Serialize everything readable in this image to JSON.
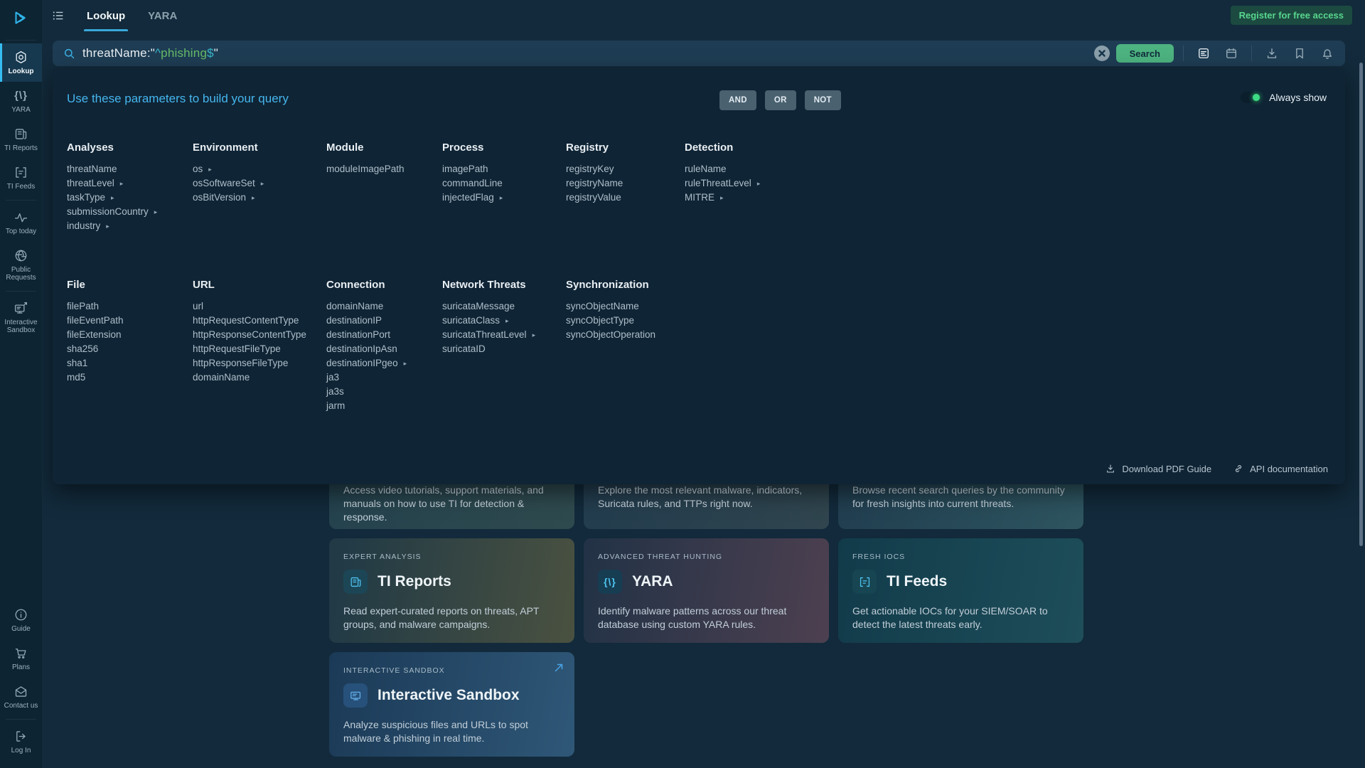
{
  "colors": {
    "accent_blue": "#39a9db",
    "button_green": "#4db380",
    "register_green": "#58d68d",
    "toggle_green": "#3ddc84",
    "query_value_green": "#66bb6a",
    "query_operator_teal": "#3ab5c9",
    "panel_bg": "#0f2435",
    "sidebar_bg": "#0d2433"
  },
  "sidebar": {
    "items": [
      {
        "label": "Lookup",
        "active": true
      },
      {
        "label": "YARA"
      },
      {
        "label": "TI Reports"
      },
      {
        "label": "TI Feeds"
      },
      {
        "label": "Top today"
      },
      {
        "label": "Public Requests"
      },
      {
        "label": "Interactive Sandbox"
      },
      {
        "label": "Guide"
      },
      {
        "label": "Plans"
      },
      {
        "label": "Contact us"
      },
      {
        "label": "Log In"
      }
    ]
  },
  "topbar": {
    "tabs": [
      {
        "label": "Lookup",
        "active": true
      },
      {
        "label": "YARA",
        "active": false
      }
    ],
    "register_label": "Register for free access"
  },
  "search": {
    "tokens": [
      "threatName:\"",
      "^",
      "phishing",
      "$",
      "\""
    ],
    "search_label": "Search"
  },
  "panel": {
    "title": "Use these parameters to build your query",
    "operators": [
      "AND",
      "OR",
      "NOT"
    ],
    "always_show_label": "Always show",
    "rows": [
      [
        {
          "title": "Analyses",
          "items": [
            {
              "label": "threatName"
            },
            {
              "label": "threatLevel",
              "arrow": true
            },
            {
              "label": "taskType",
              "arrow": true
            },
            {
              "label": "submissionCountry",
              "arrow": true
            },
            {
              "label": "industry",
              "arrow": true
            }
          ]
        },
        {
          "title": "Environment",
          "items": [
            {
              "label": "os",
              "arrow": true
            },
            {
              "label": "osSoftwareSet",
              "arrow": true
            },
            {
              "label": "osBitVersion",
              "arrow": true
            }
          ]
        },
        {
          "title": "Module",
          "items": [
            {
              "label": "moduleImagePath"
            }
          ]
        },
        {
          "title": "Process",
          "items": [
            {
              "label": "imagePath"
            },
            {
              "label": "commandLine"
            },
            {
              "label": "injectedFlag",
              "arrow": true
            }
          ]
        },
        {
          "title": "Registry",
          "items": [
            {
              "label": "registryKey"
            },
            {
              "label": "registryName"
            },
            {
              "label": "registryValue"
            }
          ]
        },
        {
          "title": "Detection",
          "items": [
            {
              "label": "ruleName"
            },
            {
              "label": "ruleThreatLevel",
              "arrow": true
            },
            {
              "label": "MITRE",
              "arrow": true
            }
          ]
        }
      ],
      [
        {
          "title": "File",
          "items": [
            {
              "label": "filePath"
            },
            {
              "label": "fileEventPath"
            },
            {
              "label": "fileExtension"
            },
            {
              "label": "sha256"
            },
            {
              "label": "sha1"
            },
            {
              "label": "md5"
            }
          ]
        },
        {
          "title": "URL",
          "items": [
            {
              "label": "url"
            },
            {
              "label": "httpRequestContentType"
            },
            {
              "label": "httpResponseContentType"
            },
            {
              "label": "httpRequestFileType"
            },
            {
              "label": "httpResponseFileType"
            },
            {
              "label": "domainName"
            }
          ]
        },
        {
          "title": "Connection",
          "items": [
            {
              "label": "domainName"
            },
            {
              "label": "destinationIP"
            },
            {
              "label": "destinationPort"
            },
            {
              "label": "destinationIpAsn"
            },
            {
              "label": "destinationIPgeo",
              "arrow": true
            },
            {
              "label": "ja3"
            },
            {
              "label": "ja3s"
            },
            {
              "label": "jarm"
            }
          ]
        },
        {
          "title": "Network Threats",
          "items": [
            {
              "label": "suricataMessage"
            },
            {
              "label": "suricataClass",
              "arrow": true
            },
            {
              "label": "suricataThreatLevel",
              "arrow": true
            },
            {
              "label": "suricataID"
            }
          ]
        },
        {
          "title": "Synchronization",
          "items": [
            {
              "label": "syncObjectName"
            },
            {
              "label": "syncObjectType"
            },
            {
              "label": "syncObjectOperation"
            }
          ]
        }
      ]
    ],
    "footer_links": [
      {
        "label": "Download PDF Guide"
      },
      {
        "label": "API documentation"
      }
    ]
  },
  "cards": {
    "partial": [
      {
        "desc": "Access video tutorials, support materials, and manuals on how to use TI for detection & response."
      },
      {
        "desc": "Explore the most relevant malware, indicators, Suricata rules, and TTPs right now."
      },
      {
        "desc": "Browse recent search queries by the community for fresh insights into current threats."
      }
    ],
    "features": [
      {
        "category": "EXPERT ANALYSIS",
        "title": "TI Reports",
        "desc": "Read expert-curated reports on threats, APT groups, and malware campaigns."
      },
      {
        "category": "ADVANCED THREAT HUNTING",
        "title": "YARA",
        "desc": "Identify malware patterns across our threat database using custom YARA rules."
      },
      {
        "category": "FRESH IOCS",
        "title": "TI Feeds",
        "desc": "Get actionable IOCs for your SIEM/SOAR to detect the latest threats early."
      },
      {
        "category": "INTERACTIVE SANDBOX",
        "title": "Interactive Sandbox",
        "desc": "Analyze suspicious files and URLs to spot malware & phishing in real time."
      }
    ]
  }
}
